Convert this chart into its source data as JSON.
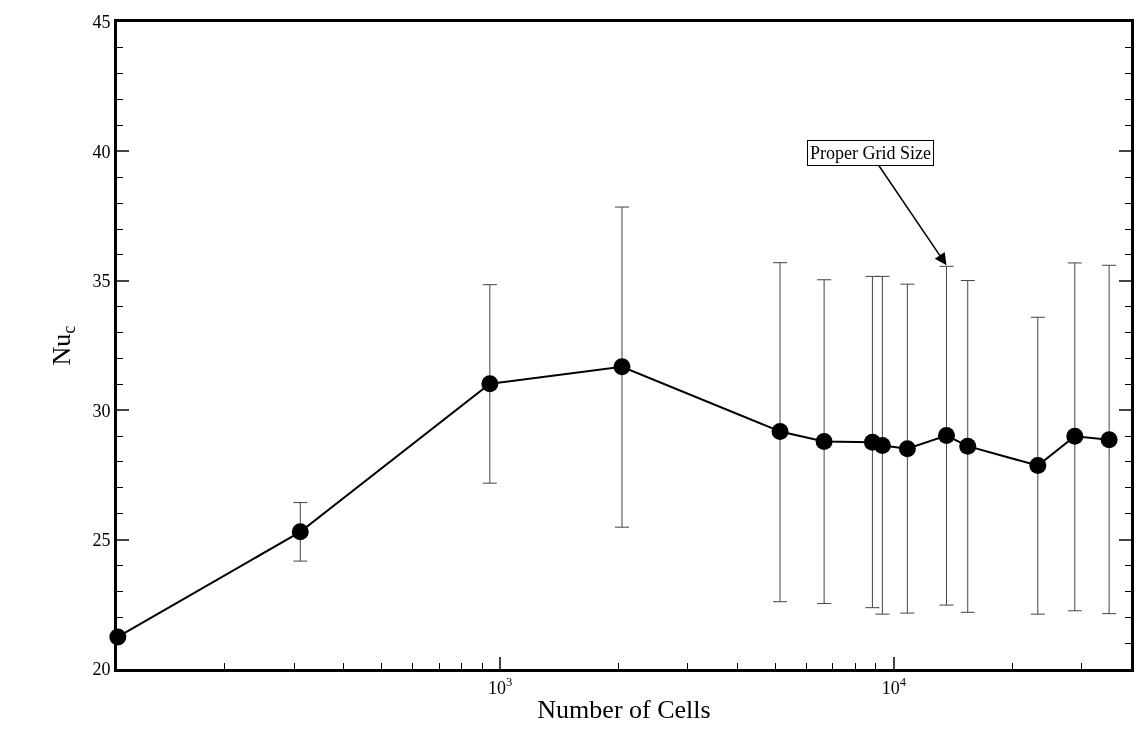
{
  "chart_data": {
    "type": "line",
    "xlabel": "Number of Cells",
    "ylabel": "Nu$_{c}$",
    "x": [
      107,
      311,
      942,
      2040,
      5140,
      6650,
      8820,
      9350,
      10820,
      13600,
      15400,
      23200,
      28800,
      35200
    ],
    "series": [
      {
        "color": "#000000",
        "values": [
          21.24,
          25.3,
          31.02,
          31.68,
          29.18,
          28.79,
          28.76,
          28.64,
          28.51,
          29.02,
          28.61,
          27.86,
          28.99,
          28.86
        ],
        "errors": [
          null,
          [
            24.17,
            26.43
          ],
          [
            27.18,
            34.85
          ],
          [
            25.48,
            37.85
          ],
          [
            22.6,
            35.7
          ],
          [
            22.53,
            35.04
          ],
          [
            22.37,
            35.17
          ],
          [
            22.12,
            35.17
          ],
          [
            22.16,
            34.87
          ],
          [
            22.47,
            35.56
          ],
          [
            22.19,
            35.01
          ],
          [
            22.12,
            33.59
          ],
          [
            22.25,
            35.69
          ],
          [
            22.14,
            35.6
          ]
        ]
      }
    ],
    "log": "x",
    "marker": "circle",
    "line_style": "solid",
    "xlim": [
      106.5,
      40000
    ],
    "xticks": [
      {
        "value": 1000,
        "label": "10$^{3}$"
      },
      {
        "value": 10000,
        "label": "10$^{4}$"
      },
      {
        "value": 200,
        "label": null
      },
      {
        "value": 300,
        "label": null
      },
      {
        "value": 400,
        "label": null
      },
      {
        "value": 500,
        "label": null
      },
      {
        "value": 600,
        "label": null
      },
      {
        "value": 700,
        "label": null
      },
      {
        "value": 800,
        "label": null
      },
      {
        "value": 900,
        "label": null
      },
      {
        "value": 2000,
        "label": null
      },
      {
        "value": 3000,
        "label": null
      },
      {
        "value": 4000,
        "label": null
      },
      {
        "value": 5000,
        "label": null
      },
      {
        "value": 6000,
        "label": null
      },
      {
        "value": 7000,
        "label": null
      },
      {
        "value": 8000,
        "label": null
      },
      {
        "value": 9000,
        "label": null
      },
      {
        "value": 20000,
        "label": null
      },
      {
        "value": 30000,
        "label": null
      },
      {
        "value": 40000,
        "label": null
      }
    ],
    "ylim": [
      20,
      45
    ],
    "yticks": [
      20,
      25,
      30,
      35,
      40,
      45,
      {
        "value": 21,
        "label": null
      },
      {
        "value": 22,
        "label": null
      },
      {
        "value": 23,
        "label": null
      },
      {
        "value": 24,
        "label": null
      },
      {
        "value": 26,
        "label": null
      },
      {
        "value": 27,
        "label": null
      },
      {
        "value": 28,
        "label": null
      },
      {
        "value": 29,
        "label": null
      },
      {
        "value": 31,
        "label": null
      },
      {
        "value": 32,
        "label": null
      },
      {
        "value": 33,
        "label": null
      },
      {
        "value": 34,
        "label": null
      },
      {
        "value": 36,
        "label": null
      },
      {
        "value": 37,
        "label": null
      },
      {
        "value": 38,
        "label": null
      },
      {
        "value": 39,
        "label": null
      },
      {
        "value": 41,
        "label": null
      },
      {
        "value": 42,
        "label": null
      },
      {
        "value": 43,
        "label": null
      },
      {
        "value": 44,
        "label": null
      }
    ],
    "annotations": [
      {
        "text": "Proper Grid Size",
        "x": 13600,
        "y": 35.6
      }
    ]
  }
}
